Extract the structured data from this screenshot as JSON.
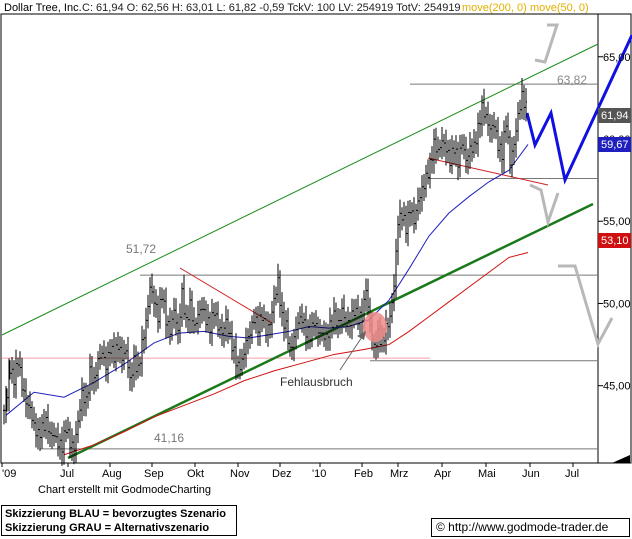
{
  "header": {
    "symbol": "Dollar Tree, Inc.",
    "quote": "C: 61,94  O: 62,56  H: 63,01  L: 61,82  -0,59  TckV: 100  LV: 254919  TotV: 254919",
    "ma200_label": "move(200, 0)",
    "ma50_label": "move(50, 0)"
  },
  "footer": {
    "credit": "Chart erstellt mit GodmodeCharting",
    "scenario_blue": "Skizzierung BLAU = bevorzugtes Szenario",
    "scenario_grey": "Skizzierung GRAU = Alternativszenario",
    "url": "© http://www.godmode-trader.de"
  },
  "colors": {
    "candles": "#000000",
    "ma50": "#1f1fbf",
    "ma200": "#d01010",
    "channel_upper": "#1a8c1a",
    "trendline": "#1a7a1a",
    "blue_scenario": "#1010e0",
    "grey_scenario": "#b8b8b8",
    "resistance_lines": "#d02020",
    "marker": "#f08a8a"
  },
  "chart_data": {
    "type": "candlestick",
    "x_ticks": [
      "'09",
      "Jul",
      "Aug",
      "Sep",
      "Okt",
      "Nov",
      "Dez",
      "'10",
      "Feb",
      "Mrz",
      "Apr",
      "Mai",
      "Jun",
      "Jul"
    ],
    "y_ticks": [
      45,
      50,
      55,
      60,
      65
    ],
    "y_tick_labels": [
      "45,00",
      "50,00",
      "55,00",
      "60,00",
      "65,00"
    ],
    "ylim": [
      40.3,
      67.6
    ],
    "price_path": [
      [
        0,
        43.5
      ],
      [
        3,
        44.6
      ],
      [
        6,
        46.0
      ],
      [
        10,
        45.4
      ],
      [
        14,
        46.6
      ],
      [
        18,
        45.0
      ],
      [
        22,
        44.0
      ],
      [
        26,
        43.6
      ],
      [
        30,
        42.5
      ],
      [
        34,
        42.0
      ],
      [
        38,
        42.4
      ],
      [
        42,
        42.8
      ],
      [
        46,
        42.0
      ],
      [
        50,
        42.0
      ],
      [
        54,
        41.5
      ],
      [
        58,
        41.3
      ],
      [
        62,
        42.5
      ],
      [
        66,
        41.5
      ],
      [
        70,
        41.2
      ],
      [
        74,
        42.8
      ],
      [
        78,
        44.5
      ],
      [
        82,
        44.0
      ],
      [
        86,
        45.8
      ],
      [
        90,
        45.2
      ],
      [
        94,
        46.5
      ],
      [
        98,
        47.0
      ],
      [
        102,
        46.2
      ],
      [
        106,
        47.3
      ],
      [
        110,
        46.8
      ],
      [
        114,
        47.5
      ],
      [
        118,
        46.7
      ],
      [
        122,
        47.1
      ],
      [
        126,
        45.3
      ],
      [
        130,
        46.5
      ],
      [
        134,
        45.9
      ],
      [
        138,
        47.5
      ],
      [
        142,
        48.8
      ],
      [
        146,
        51.0
      ],
      [
        150,
        50.2
      ],
      [
        154,
        49.2
      ],
      [
        158,
        50.6
      ],
      [
        162,
        49.0
      ],
      [
        166,
        48.3
      ],
      [
        170,
        49.6
      ],
      [
        174,
        48.2
      ],
      [
        178,
        50.6
      ],
      [
        182,
        48.8
      ],
      [
        186,
        49.9
      ],
      [
        190,
        48.5
      ],
      [
        194,
        49.3
      ],
      [
        198,
        49.8
      ],
      [
        202,
        49.0
      ],
      [
        206,
        48.6
      ],
      [
        210,
        49.6
      ],
      [
        214,
        48.6
      ],
      [
        218,
        48.2
      ],
      [
        222,
        48.9
      ],
      [
        226,
        47.9
      ],
      [
        230,
        47.0
      ],
      [
        234,
        46.1
      ],
      [
        238,
        46.4
      ],
      [
        242,
        47.7
      ],
      [
        246,
        48.2
      ],
      [
        250,
        49.1
      ],
      [
        254,
        48.6
      ],
      [
        258,
        49.3
      ],
      [
        262,
        48.3
      ],
      [
        266,
        48.8
      ],
      [
        270,
        50.2
      ],
      [
        274,
        51.3
      ],
      [
        278,
        49.1
      ],
      [
        282,
        48.6
      ],
      [
        286,
        47.1
      ],
      [
        290,
        47.9
      ],
      [
        294,
        48.9
      ],
      [
        298,
        49.1
      ],
      [
        302,
        48.3
      ],
      [
        306,
        48.1
      ],
      [
        310,
        48.9
      ],
      [
        314,
        48.3
      ],
      [
        318,
        48.1
      ],
      [
        322,
        47.9
      ],
      [
        326,
        48.6
      ],
      [
        330,
        49.2
      ],
      [
        334,
        48.7
      ],
      [
        338,
        49.6
      ],
      [
        342,
        48.7
      ],
      [
        346,
        48.9
      ],
      [
        350,
        49.6
      ],
      [
        354,
        49.1
      ],
      [
        358,
        49.2
      ],
      [
        362,
        50.9
      ],
      [
        366,
        48.6
      ],
      [
        370,
        47.3
      ],
      [
        374,
        48.1
      ],
      [
        378,
        47.6
      ],
      [
        382,
        48.5
      ],
      [
        386,
        49.1
      ],
      [
        390,
        51.1
      ],
      [
        394,
        55.0
      ],
      [
        398,
        55.4
      ],
      [
        402,
        54.6
      ],
      [
        406,
        55.8
      ],
      [
        410,
        55.0
      ],
      [
        414,
        56.2
      ],
      [
        418,
        56.9
      ],
      [
        422,
        57.6
      ],
      [
        426,
        58.4
      ],
      [
        430,
        59.7
      ],
      [
        434,
        59.2
      ],
      [
        438,
        59.9
      ],
      [
        442,
        59.4
      ],
      [
        446,
        58.7
      ],
      [
        450,
        59.5
      ],
      [
        454,
        58.6
      ],
      [
        458,
        59.8
      ],
      [
        462,
        58.7
      ],
      [
        466,
        59.4
      ],
      [
        470,
        59.5
      ],
      [
        474,
        60.6
      ],
      [
        478,
        61.9
      ],
      [
        482,
        61.3
      ],
      [
        486,
        60.6
      ],
      [
        490,
        60.9
      ],
      [
        494,
        59.6
      ],
      [
        498,
        59.1
      ],
      [
        502,
        61.1
      ],
      [
        506,
        58.6
      ],
      [
        510,
        59.7
      ],
      [
        514,
        61.4
      ],
      [
        518,
        62.6
      ],
      [
        522,
        61.9
      ],
      [
        524,
        61.94
      ]
    ],
    "series": [
      {
        "name": "move(50, 0)",
        "values": [
          [
            2,
            43.2
          ],
          [
            30,
            44.6
          ],
          [
            60,
            44.3
          ],
          [
            90,
            45.2
          ],
          [
            120,
            46.3
          ],
          [
            150,
            47.6
          ],
          [
            175,
            48.2
          ],
          [
            200,
            48.3
          ],
          [
            225,
            48.0
          ],
          [
            245,
            47.9
          ],
          [
            265,
            48.1
          ],
          [
            285,
            48.3
          ],
          [
            305,
            48.6
          ],
          [
            325,
            48.5
          ],
          [
            345,
            48.6
          ],
          [
            365,
            49.0
          ],
          [
            385,
            50.2
          ],
          [
            405,
            52.1
          ],
          [
            425,
            54.1
          ],
          [
            445,
            55.5
          ],
          [
            465,
            56.5
          ],
          [
            485,
            57.4
          ],
          [
            505,
            58.1
          ],
          [
            524,
            59.67
          ]
        ]
      },
      {
        "name": "move(200, 0)",
        "values": [
          [
            60,
            40.8
          ],
          [
            90,
            41.4
          ],
          [
            120,
            42.2
          ],
          [
            150,
            43.1
          ],
          [
            180,
            43.8
          ],
          [
            210,
            44.5
          ],
          [
            240,
            45.3
          ],
          [
            270,
            45.9
          ],
          [
            300,
            46.4
          ],
          [
            330,
            46.9
          ],
          [
            360,
            47.2
          ],
          [
            385,
            47.5
          ],
          [
            405,
            48.3
          ],
          [
            425,
            49.2
          ],
          [
            445,
            50.1
          ],
          [
            465,
            51.0
          ],
          [
            485,
            51.9
          ],
          [
            505,
            52.8
          ],
          [
            524,
            53.1
          ]
        ]
      }
    ],
    "levels": {
      "resistance_high": "63,82",
      "resistance_mid": "51,72",
      "support_low": "41,16",
      "last_price": "61,94",
      "ma50_value": "59,67",
      "ma200_value": "53,10"
    },
    "level_values": {
      "resistance_high": 63.82,
      "resistance_mid": 51.72,
      "support_low": 41.16,
      "pink_line": 46.8,
      "mid_grey": 57.6,
      "mid_grey2": 46.7
    },
    "annotation": "Fehlausbruch"
  }
}
